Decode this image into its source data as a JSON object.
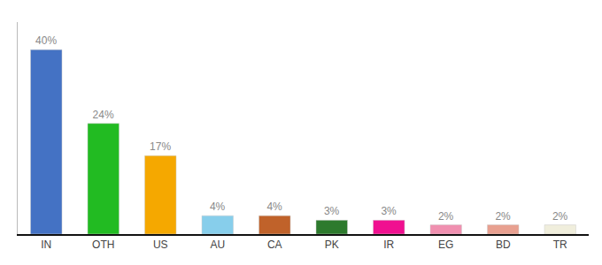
{
  "chart_data": {
    "type": "bar",
    "categories": [
      "IN",
      "OTH",
      "US",
      "AU",
      "CA",
      "PK",
      "IR",
      "EG",
      "BD",
      "TR"
    ],
    "values": [
      40,
      24,
      17,
      4,
      4,
      3,
      3,
      2,
      2,
      2
    ],
    "value_labels": [
      "40%",
      "24%",
      "17%",
      "4%",
      "4%",
      "3%",
      "3%",
      "2%",
      "2%",
      "2%"
    ],
    "colors": [
      "#4472c4",
      "#22bb22",
      "#f5a800",
      "#87ceeb",
      "#c0622a",
      "#2d7a2d",
      "#f01090",
      "#f090b0",
      "#e8a090",
      "#f0eedc"
    ],
    "ylim": [
      0,
      46
    ],
    "data_labels": true,
    "tick_labels": "x",
    "grid": false
  }
}
